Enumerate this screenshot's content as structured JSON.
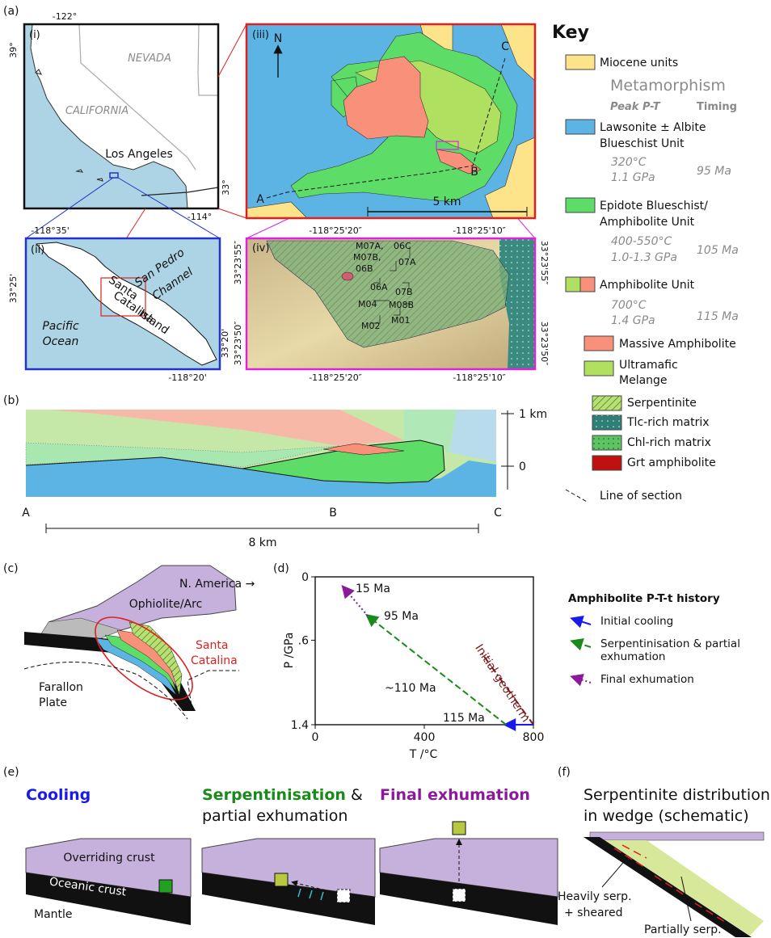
{
  "panel_a": {
    "label": "(a)",
    "i": {
      "label": "(i)",
      "lon": [
        "-122°",
        "-114°"
      ],
      "lat": [
        "39°",
        "33°"
      ],
      "nevada": "NEVADA",
      "california": "CALIFORNIA",
      "city": "Los Angeles"
    },
    "ii": {
      "label": "(ii)",
      "lon": [
        "-118°35'",
        "-118°20'"
      ],
      "lat": [
        "33°25'",
        "33°20'"
      ],
      "channel": [
        "San Pedro",
        "Channel"
      ],
      "island": [
        "Santa",
        "Catalina",
        "Island"
      ],
      "ocean": [
        "Pacific",
        "Ocean"
      ]
    },
    "iii": {
      "label": "(iii)",
      "north": "N",
      "section_points": [
        "A",
        "B",
        "C"
      ],
      "scale": "5 km"
    },
    "iv": {
      "label": "(iv)",
      "lon": [
        "-118°25'20″",
        "-118°25'10″"
      ],
      "lat": [
        "33°23'55″",
        "33°23'50″"
      ],
      "samples": [
        "M07A,",
        "M07B,",
        "06B",
        "06C",
        "07A",
        "06A",
        "07B",
        "M04",
        "M08B",
        "M01",
        "M02"
      ]
    }
  },
  "key": {
    "title": "Key",
    "miocene": "Miocene units",
    "metamorphism": "Metamorphism",
    "peak_pt": "Peak P-T",
    "timing": "Timing",
    "units": [
      {
        "name": [
          "Lawsonite ± Albite",
          "Blueschist Unit"
        ],
        "pt": [
          "320°C",
          "1.1 GPa"
        ],
        "age": "95 Ma"
      },
      {
        "name": [
          "Epidote Blueschist/",
          "Amphibolite Unit"
        ],
        "pt": [
          "400-550°C",
          "1.0-1.3 GPa"
        ],
        "age": "105 Ma"
      },
      {
        "name": [
          "Amphibolite Unit"
        ],
        "pt": [
          "700°C",
          "1.4 GPa"
        ],
        "age": "115 Ma"
      }
    ],
    "subunits": [
      [
        "Massive Amphibolite"
      ],
      [
        "Ultramafic",
        "Melange"
      ]
    ],
    "ultramafic": [
      "Serpentinite",
      "Tlc-rich matrix",
      "Chl-rich matrix",
      "Grt amphibolite"
    ],
    "line_of_section": "Line of section"
  },
  "panel_b": {
    "label": "(b)",
    "scale_ticks": [
      "1 km",
      "0"
    ],
    "points": [
      "A",
      "B",
      "C"
    ],
    "distance": "8 km"
  },
  "panel_c": {
    "label": "(c)",
    "continent": "N. America →",
    "arc": "Ophiolite/Arc",
    "island": [
      "Santa",
      "Catalina"
    ],
    "plate": [
      "Farallon",
      "Plate"
    ]
  },
  "chart_data": {
    "type": "line",
    "label": "(d)",
    "xlabel": "T /°C",
    "ylabel": "P /GPa",
    "xlim": [
      0,
      800
    ],
    "ylim": [
      0,
      1.4
    ],
    "y_inverted": true,
    "xticks": [
      0,
      400,
      800
    ],
    "yticks": [
      0,
      {
        "value": 0.6,
        "label": ".6"
      },
      1.4
    ],
    "legend_title": "Amphibolite P-T-t history",
    "series": [
      {
        "name": "Initial cooling",
        "color": "#1a1aee",
        "style": "solid",
        "x": [
          800,
          700
        ],
        "values": [
          1.4,
          1.4
        ]
      },
      {
        "name": "Serpentinisation & partial exhumation",
        "color": "#1a8a1a",
        "style": "dashed",
        "x": [
          700,
          193
        ],
        "values": [
          1.4,
          0.37
        ]
      },
      {
        "name": "Final exhumation",
        "color": "#8a1a9a",
        "style": "dotted",
        "x": [
          193,
          104
        ],
        "values": [
          0.37,
          0.1
        ]
      }
    ],
    "geotherm": {
      "name": "Initial geotherm",
      "color": "#7a1a1a",
      "style": "dashdot",
      "x": [
        800,
        610
      ],
      "values": [
        1.4,
        0.72
      ]
    },
    "annotations": [
      "15 Ma",
      "95 Ma",
      "~110 Ma",
      "115 Ma"
    ]
  },
  "panel_e": {
    "label": "(e)",
    "stages": [
      {
        "title": "Cooling"
      },
      {
        "title": "Serpentinisation",
        "rest": [
          " &",
          "partial exhumation"
        ]
      },
      {
        "title": "Final exhumation"
      }
    ],
    "overriding": "Overriding crust",
    "oceanic": "Oceanic crust",
    "mantle": "Mantle"
  },
  "panel_f": {
    "label": "(f)",
    "title": [
      "Serpentinite distribution",
      "in wedge (schematic)"
    ],
    "heavy": [
      "Heavily serp.",
      "+ sheared"
    ],
    "partial": "Partially serp."
  }
}
